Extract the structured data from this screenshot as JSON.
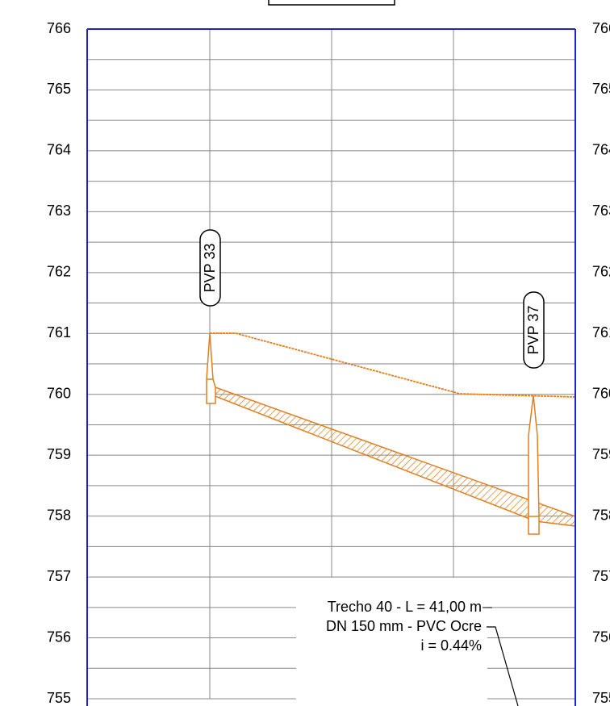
{
  "axis": {
    "ticks": [
      766,
      765,
      764,
      763,
      762,
      761,
      760,
      759,
      758,
      757,
      756,
      755
    ]
  },
  "manholes": [
    {
      "label": "PVP 33"
    },
    {
      "label": "PVP 37"
    }
  ],
  "annotation": {
    "lines": [
      "Trecho 40 - L = 41,00 m",
      "DN 150 mm - PVC Ocre",
      "i = 0.44%"
    ]
  }
}
